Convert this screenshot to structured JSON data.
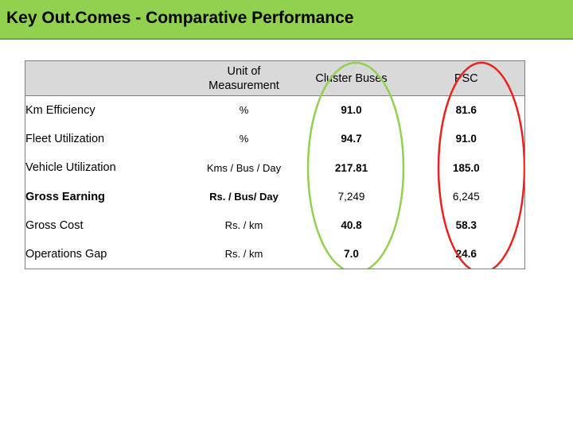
{
  "title": "Key Out.Comes - Comparative Performance",
  "colors": {
    "title_bg": "#92d050",
    "header_bg": "#d9d9d9",
    "cluster_ellipse": "#92d050",
    "psc_ellipse": "#e8231f"
  },
  "table": {
    "headers": {
      "metric": "",
      "unit": "Unit of Measurement",
      "cluster": "Cluster Buses",
      "psc": "PSC"
    },
    "rows": [
      {
        "metric": "Km Efficiency",
        "unit": "%",
        "cluster": "91.0",
        "psc": "81.6"
      },
      {
        "metric": "Fleet Utilization",
        "unit": "%",
        "cluster": "94.7",
        "psc": "91.0"
      },
      {
        "metric": "Vehicle Utilization",
        "unit": "Kms / Bus / Day",
        "cluster": "217.81",
        "psc": "185.0"
      },
      {
        "metric": "Gross Earning",
        "unit": "Rs. / Bus/ Day",
        "cluster": "7,249",
        "psc": "6,245"
      },
      {
        "metric": "Gross Cost",
        "unit": "Rs. / km",
        "cluster": "40.8",
        "psc": "58.3"
      },
      {
        "metric": "Operations Gap",
        "unit": "Rs. / km",
        "cluster": "7.0",
        "psc": "24.6"
      }
    ]
  }
}
